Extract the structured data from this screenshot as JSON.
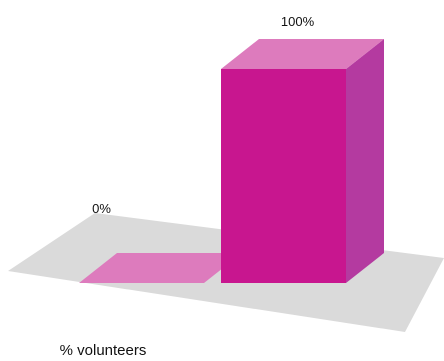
{
  "chart_data": {
    "type": "bar",
    "categories": [
      "",
      ""
    ],
    "values": [
      0,
      100
    ],
    "value_labels": [
      "0%",
      "100%"
    ],
    "title": "",
    "xlabel": "% volunteers",
    "ylabel": "",
    "ylim": [
      0,
      100
    ],
    "grid": false,
    "legend": "none",
    "style": "3d"
  },
  "colors": {
    "bar_front": "#c8168f",
    "bar_top": "#dd7bbd",
    "bar_side": "#b43aa0",
    "floor": "#dadada",
    "text": "#111111"
  }
}
